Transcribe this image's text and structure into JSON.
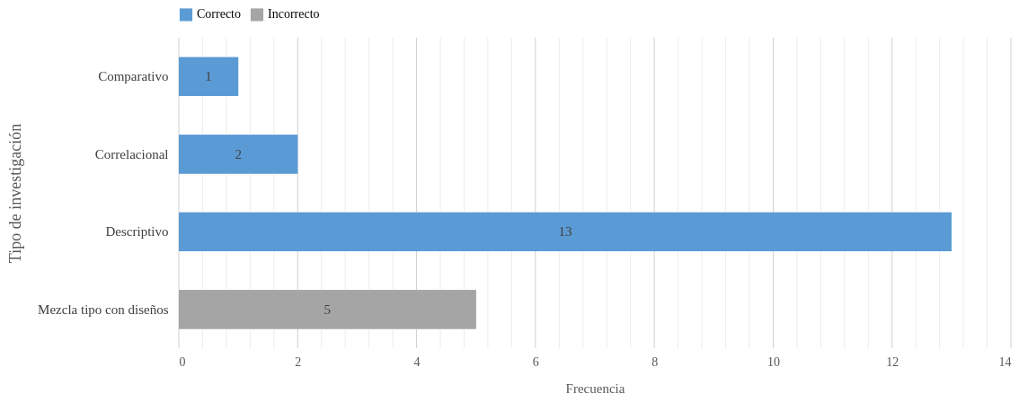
{
  "chart_data": {
    "type": "bar",
    "orientation": "horizontal",
    "stacked": true,
    "xlabel": "Frecuencia",
    "ylabel": "Tipo de investigación",
    "categories": [
      "Comparativo",
      "Correlacional",
      "Descriptivo",
      "Mezcla tipo con diseños"
    ],
    "series": [
      {
        "name": "Correcto",
        "color": "#5b9bd5",
        "values": [
          1,
          2,
          13,
          null
        ]
      },
      {
        "name": "Incorrecto",
        "color": "#a5a5a5",
        "values": [
          null,
          null,
          null,
          5
        ]
      }
    ],
    "xlim": [
      0,
      14
    ],
    "xticks": [
      0,
      {
        "value": 0.4,
        "label": null
      },
      {
        "value": 0.8,
        "label": null
      },
      {
        "value": 1.2,
        "label": null
      },
      {
        "value": 1.6,
        "label": null
      },
      2,
      {
        "value": 2.4,
        "label": null
      },
      {
        "value": 2.8,
        "label": null
      },
      {
        "value": 3.2,
        "label": null
      },
      {
        "value": 3.6,
        "label": null
      },
      4,
      {
        "value": 4.4,
        "label": null
      },
      {
        "value": 4.8,
        "label": null
      },
      {
        "value": 5.2,
        "label": null
      },
      {
        "value": 5.6,
        "label": null
      },
      6,
      {
        "value": 6.4,
        "label": null
      },
      {
        "value": 6.8,
        "label": null
      },
      {
        "value": 7.2,
        "label": null
      },
      {
        "value": 7.6,
        "label": null
      },
      8,
      {
        "value": 8.4,
        "label": null
      },
      {
        "value": 8.8,
        "label": null
      },
      {
        "value": 9.2,
        "label": null
      },
      {
        "value": 9.6,
        "label": null
      },
      10,
      {
        "value": 10.4,
        "label": null
      },
      {
        "value": 10.8,
        "label": null
      },
      {
        "value": 11.2,
        "label": null
      },
      {
        "value": 11.6,
        "label": null
      },
      12,
      {
        "value": 12.4,
        "label": null
      },
      {
        "value": 12.8,
        "label": null
      },
      {
        "value": 13.2,
        "label": null
      },
      {
        "value": 13.6,
        "label": null
      },
      14
    ],
    "grid": "x",
    "legend": "top",
    "data_labels": true
  }
}
